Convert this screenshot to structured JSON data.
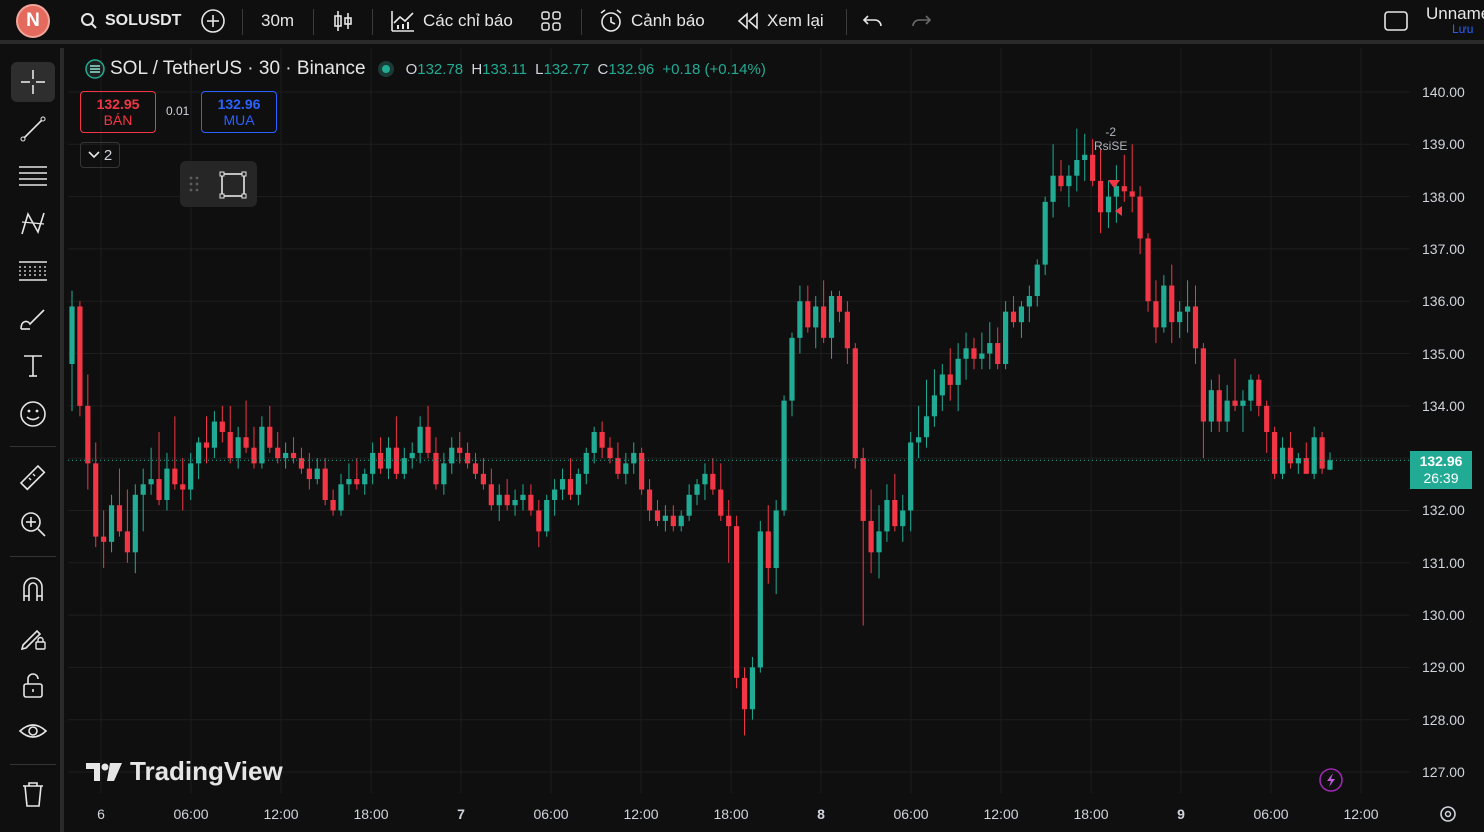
{
  "topbar": {
    "avatar_letter": "N",
    "symbol": "SOLUSDT",
    "interval": "30m",
    "indicators_label": "Các chỉ báo",
    "alert_label": "Cảnh báo",
    "replay_label": "Xem lại",
    "layout_name": "Unnamed",
    "save_label": "Lưu"
  },
  "legend": {
    "title": "SOL / TetherUS · 30 · Binance",
    "o_key": "O",
    "o_val": "132.78",
    "h_key": "H",
    "h_val": "133.11",
    "l_key": "L",
    "l_val": "132.77",
    "c_key": "C",
    "c_val": "132.96",
    "change": "+0.18 (+0.14%)"
  },
  "trade": {
    "sell_price": "132.95",
    "sell_label": "BÁN",
    "spread": "0.01",
    "buy_price": "132.96",
    "buy_label": "MUA",
    "collapse_count": "2"
  },
  "price_scale": {
    "labels": [
      "140.00",
      "139.00",
      "138.00",
      "137.00",
      "136.00",
      "135.00",
      "134.00",
      "133.00",
      "132.00",
      "131.00",
      "130.00",
      "129.00",
      "128.00",
      "127.00"
    ],
    "current_price": "132.96",
    "countdown": "26:39"
  },
  "time_scale": {
    "labels": [
      "6",
      "06:00",
      "12:00",
      "18:00",
      "7",
      "06:00",
      "12:00",
      "18:00",
      "8",
      "06:00",
      "12:00",
      "18:00",
      "9",
      "06:00",
      "12:00"
    ]
  },
  "annotation": {
    "value": "-2",
    "label": "RsiSE"
  },
  "brand": {
    "text": "TradingView"
  },
  "colors": {
    "up": "#22ab94",
    "down": "#f23645",
    "background": "#0f0f0f",
    "accent": "#2962ff"
  },
  "chart_data": {
    "type": "candlestick",
    "symbol": "SOL / TetherUS",
    "interval": "30",
    "exchange": "Binance",
    "ylim": [
      126.6,
      140.4
    ],
    "candles": [
      [
        134.8,
        136.2,
        133.9,
        135.9
      ],
      [
        135.9,
        136.0,
        133.8,
        134.0
      ],
      [
        134.0,
        134.6,
        132.4,
        132.9
      ],
      [
        132.9,
        133.3,
        131.3,
        131.5
      ],
      [
        131.5,
        132.0,
        130.9,
        131.4
      ],
      [
        131.4,
        132.3,
        131.2,
        132.1
      ],
      [
        132.1,
        132.8,
        131.5,
        131.6
      ],
      [
        131.6,
        132.4,
        131.0,
        131.2
      ],
      [
        131.2,
        132.5,
        130.8,
        132.3
      ],
      [
        132.3,
        132.8,
        131.6,
        132.5
      ],
      [
        132.5,
        133.2,
        132.3,
        132.6
      ],
      [
        132.6,
        133.5,
        132.1,
        132.2
      ],
      [
        132.2,
        133.1,
        132.0,
        132.8
      ],
      [
        132.8,
        133.8,
        132.4,
        132.5
      ],
      [
        132.5,
        133.0,
        132.0,
        132.4
      ],
      [
        132.4,
        133.1,
        132.2,
        132.9
      ],
      [
        132.9,
        133.4,
        132.6,
        133.3
      ],
      [
        133.3,
        133.8,
        132.9,
        133.2
      ],
      [
        133.2,
        133.9,
        133.0,
        133.7
      ],
      [
        133.7,
        134.0,
        133.3,
        133.5
      ],
      [
        133.5,
        134.0,
        132.9,
        133.0
      ],
      [
        133.0,
        133.6,
        132.8,
        133.4
      ],
      [
        133.4,
        134.1,
        133.1,
        133.2
      ],
      [
        133.2,
        133.6,
        132.8,
        132.9
      ],
      [
        132.9,
        133.8,
        132.8,
        133.6
      ],
      [
        133.6,
        134.0,
        133.1,
        133.2
      ],
      [
        133.2,
        133.5,
        132.9,
        133.0
      ],
      [
        133.0,
        133.3,
        132.8,
        133.1
      ],
      [
        133.1,
        133.4,
        132.9,
        133.0
      ],
      [
        133.0,
        133.2,
        132.7,
        132.8
      ],
      [
        132.8,
        133.1,
        132.4,
        132.6
      ],
      [
        132.6,
        133.0,
        132.5,
        132.8
      ],
      [
        132.8,
        133.0,
        132.1,
        132.2
      ],
      [
        132.2,
        132.4,
        131.9,
        132.0
      ],
      [
        132.0,
        132.7,
        131.9,
        132.5
      ],
      [
        132.5,
        132.9,
        132.3,
        132.6
      ],
      [
        132.6,
        133.0,
        132.4,
        132.5
      ],
      [
        132.5,
        132.8,
        132.3,
        132.7
      ],
      [
        132.7,
        133.3,
        132.5,
        133.1
      ],
      [
        133.1,
        133.4,
        132.7,
        132.8
      ],
      [
        132.8,
        133.4,
        132.6,
        133.2
      ],
      [
        133.2,
        133.8,
        132.6,
        132.7
      ],
      [
        132.7,
        133.2,
        132.6,
        133.0
      ],
      [
        133.0,
        133.3,
        132.8,
        133.1
      ],
      [
        133.1,
        133.8,
        132.9,
        133.6
      ],
      [
        133.6,
        134.0,
        133.0,
        133.1
      ],
      [
        133.1,
        133.4,
        132.4,
        132.5
      ],
      [
        132.5,
        133.1,
        132.3,
        132.9
      ],
      [
        132.9,
        133.4,
        132.7,
        133.2
      ],
      [
        133.2,
        133.5,
        132.9,
        133.1
      ],
      [
        133.1,
        133.3,
        132.8,
        132.9
      ],
      [
        132.9,
        133.1,
        132.6,
        132.7
      ],
      [
        132.7,
        133.0,
        132.4,
        132.5
      ],
      [
        132.5,
        132.8,
        132.0,
        132.1
      ],
      [
        132.1,
        132.5,
        131.8,
        132.3
      ],
      [
        132.3,
        132.6,
        132.0,
        132.1
      ],
      [
        132.1,
        132.4,
        131.9,
        132.2
      ],
      [
        132.2,
        132.5,
        132.0,
        132.3
      ],
      [
        132.3,
        132.5,
        131.9,
        132.0
      ],
      [
        132.0,
        132.2,
        131.3,
        131.6
      ],
      [
        131.6,
        132.3,
        131.5,
        132.2
      ],
      [
        132.2,
        132.6,
        131.9,
        132.4
      ],
      [
        132.4,
        132.8,
        132.2,
        132.6
      ],
      [
        132.6,
        133.0,
        132.2,
        132.3
      ],
      [
        132.3,
        132.8,
        132.1,
        132.7
      ],
      [
        132.7,
        133.2,
        132.5,
        133.1
      ],
      [
        133.1,
        133.6,
        132.9,
        133.5
      ],
      [
        133.5,
        133.7,
        133.0,
        133.2
      ],
      [
        133.2,
        133.4,
        132.9,
        133.0
      ],
      [
        133.0,
        133.3,
        132.6,
        132.7
      ],
      [
        132.7,
        133.1,
        132.5,
        132.9
      ],
      [
        132.9,
        133.3,
        132.7,
        133.1
      ],
      [
        133.1,
        133.2,
        132.3,
        132.4
      ],
      [
        132.4,
        132.6,
        131.8,
        132.0
      ],
      [
        132.0,
        132.2,
        131.7,
        131.8
      ],
      [
        131.8,
        132.1,
        131.6,
        131.9
      ],
      [
        131.9,
        132.1,
        131.6,
        131.7
      ],
      [
        131.7,
        132.0,
        131.6,
        131.9
      ],
      [
        131.9,
        132.5,
        131.8,
        132.3
      ],
      [
        132.3,
        132.6,
        132.1,
        132.5
      ],
      [
        132.5,
        132.9,
        132.2,
        132.7
      ],
      [
        132.7,
        133.0,
        132.3,
        132.4
      ],
      [
        132.4,
        132.9,
        131.8,
        131.9
      ],
      [
        131.9,
        132.2,
        131.0,
        131.7
      ],
      [
        131.7,
        131.9,
        128.6,
        128.8
      ],
      [
        128.8,
        129.0,
        127.7,
        128.2
      ],
      [
        128.2,
        129.2,
        128.0,
        129.0
      ],
      [
        129.0,
        131.8,
        128.9,
        131.6
      ],
      [
        131.6,
        132.1,
        130.6,
        130.9
      ],
      [
        130.9,
        132.2,
        130.4,
        132.0
      ],
      [
        132.0,
        134.2,
        131.9,
        134.1
      ],
      [
        134.1,
        135.4,
        133.8,
        135.3
      ],
      [
        135.3,
        136.3,
        135.0,
        136.0
      ],
      [
        136.0,
        136.3,
        135.4,
        135.5
      ],
      [
        135.5,
        136.1,
        135.1,
        135.9
      ],
      [
        135.9,
        136.4,
        135.2,
        135.3
      ],
      [
        135.3,
        136.2,
        134.9,
        136.1
      ],
      [
        136.1,
        136.2,
        135.6,
        135.8
      ],
      [
        135.8,
        136.0,
        134.8,
        135.1
      ],
      [
        135.1,
        135.2,
        132.8,
        133.0
      ],
      [
        133.0,
        133.2,
        129.8,
        131.8
      ],
      [
        131.8,
        132.4,
        130.8,
        131.2
      ],
      [
        131.2,
        132.1,
        130.7,
        131.6
      ],
      [
        131.6,
        132.5,
        131.4,
        132.2
      ],
      [
        132.2,
        132.7,
        131.6,
        131.7
      ],
      [
        131.7,
        132.3,
        131.4,
        132.0
      ],
      [
        132.0,
        133.5,
        131.6,
        133.3
      ],
      [
        133.3,
        134.0,
        133.0,
        133.4
      ],
      [
        133.4,
        134.5,
        133.2,
        133.8
      ],
      [
        133.8,
        134.7,
        133.6,
        134.2
      ],
      [
        134.2,
        134.8,
        133.9,
        134.6
      ],
      [
        134.6,
        135.1,
        134.1,
        134.4
      ],
      [
        134.4,
        135.2,
        133.9,
        134.9
      ],
      [
        134.9,
        135.4,
        134.5,
        135.1
      ],
      [
        135.1,
        135.3,
        134.7,
        134.9
      ],
      [
        134.9,
        135.4,
        134.7,
        135.0
      ],
      [
        135.0,
        135.6,
        134.7,
        135.2
      ],
      [
        135.2,
        135.5,
        134.7,
        134.8
      ],
      [
        134.8,
        136.0,
        134.7,
        135.8
      ],
      [
        135.8,
        136.1,
        135.5,
        135.6
      ],
      [
        135.6,
        136.0,
        135.3,
        135.9
      ],
      [
        135.9,
        136.3,
        135.6,
        136.1
      ],
      [
        136.1,
        136.8,
        135.9,
        136.7
      ],
      [
        136.7,
        138.0,
        136.5,
        137.9
      ],
      [
        137.9,
        139.0,
        137.6,
        138.4
      ],
      [
        138.4,
        138.7,
        138.1,
        138.2
      ],
      [
        138.2,
        138.6,
        137.8,
        138.4
      ],
      [
        138.4,
        139.3,
        138.1,
        138.7
      ],
      [
        138.7,
        139.2,
        138.3,
        138.8
      ],
      [
        138.8,
        139.1,
        138.2,
        138.3
      ],
      [
        138.3,
        138.9,
        137.3,
        137.7
      ],
      [
        137.7,
        138.3,
        137.4,
        138.0
      ],
      [
        138.0,
        138.6,
        137.5,
        138.2
      ],
      [
        138.2,
        138.8,
        137.9,
        138.1
      ],
      [
        138.1,
        139.0,
        137.7,
        138.0
      ],
      [
        138.0,
        138.2,
        136.9,
        137.2
      ],
      [
        137.2,
        137.3,
        135.8,
        136.0
      ],
      [
        136.0,
        136.4,
        135.2,
        135.5
      ],
      [
        135.5,
        136.5,
        135.4,
        136.3
      ],
      [
        136.3,
        136.7,
        135.2,
        135.6
      ],
      [
        135.6,
        136.0,
        135.3,
        135.8
      ],
      [
        135.8,
        136.4,
        135.4,
        135.9
      ],
      [
        135.9,
        136.3,
        134.8,
        135.1
      ],
      [
        135.1,
        135.2,
        133.0,
        133.7
      ],
      [
        133.7,
        134.5,
        133.5,
        134.3
      ],
      [
        134.3,
        134.6,
        133.5,
        133.7
      ],
      [
        133.7,
        134.4,
        133.5,
        134.1
      ],
      [
        134.1,
        134.9,
        133.9,
        134.0
      ],
      [
        134.0,
        134.3,
        133.5,
        134.1
      ],
      [
        134.1,
        134.6,
        133.9,
        134.5
      ],
      [
        134.5,
        134.6,
        133.8,
        134.0
      ],
      [
        134.0,
        134.1,
        133.1,
        133.5
      ],
      [
        133.5,
        133.6,
        132.6,
        132.7
      ],
      [
        132.7,
        133.4,
        132.6,
        133.2
      ],
      [
        133.2,
        133.5,
        132.8,
        132.9
      ],
      [
        132.9,
        133.1,
        132.7,
        133.0
      ],
      [
        133.0,
        133.3,
        132.8,
        132.7
      ],
      [
        132.7,
        133.6,
        132.6,
        133.4
      ],
      [
        133.4,
        133.5,
        132.7,
        132.8
      ],
      [
        132.78,
        133.11,
        132.77,
        132.96
      ]
    ]
  }
}
